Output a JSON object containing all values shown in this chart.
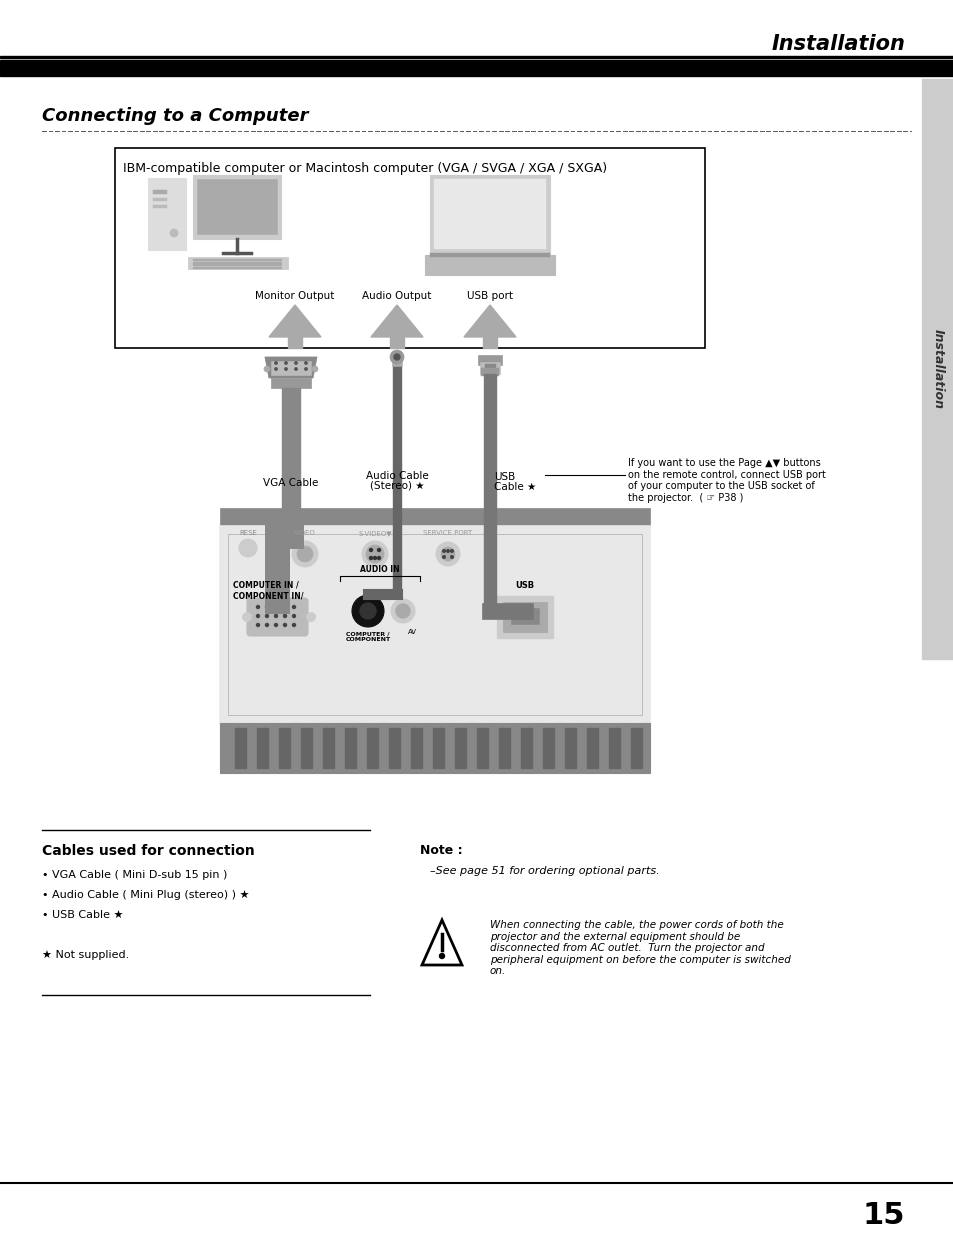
{
  "page_bg": "#ffffff",
  "header_text": "Installation",
  "section_title": "Connecting to a Computer",
  "computer_box_label": "IBM-compatible computer or Macintosh computer (VGA / SVGA / XGA / SXGA)",
  "arrow_labels": [
    "Monitor Output",
    "Audio Output",
    "USB port"
  ],
  "cable_labels_line1": [
    "VGA Cable",
    "Audio Cable",
    "USB"
  ],
  "cable_labels_line2": [
    "",
    "(Stereo) ★",
    "Cable ★"
  ],
  "usb_note": "If you want to use the Page ▲▼ buttons\non the remote control, connect USB port\nof your computer to the USB socket of\nthe projector.  ( ☞ P38 )",
  "cables_section_title": "Cables used for connection",
  "cables_list": [
    "• VGA Cable ( Mini D-sub 15 pin )",
    "• Audio Cable ( Mini Plug (stereo) ) ★",
    "• USB Cable ★",
    "",
    "★ Not supplied."
  ],
  "note_title": "Note :",
  "note_text": "–See page 51 for ordering optional parts.",
  "warning_text": "When connecting the cable, the power cords of both the\nprojector and the external equipment should be\ndisconnected from AC outlet.  Turn the projector and\nperipheral equipment on before the computer is switched\non.",
  "page_number": "15",
  "sidebar_text": "Installation",
  "sidebar_color": "#cccccc",
  "sidebar_text_color": "#333333"
}
